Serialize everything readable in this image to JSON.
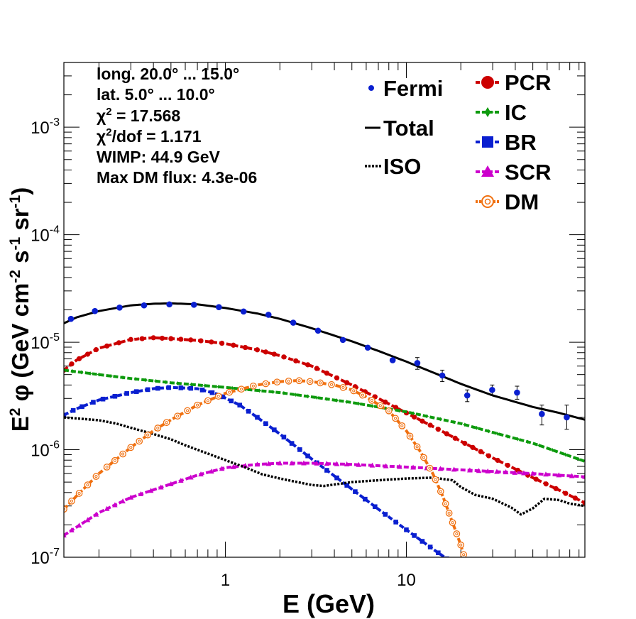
{
  "chart_data": {
    "type": "line",
    "xscale": "log",
    "yscale": "log",
    "xlim": [
      0.128,
      97
    ],
    "ylim": [
      1e-07,
      0.004
    ],
    "xlabel": "E (GeV)",
    "ylabel_parts": [
      "E",
      "2",
      " φ (GeV cm",
      "-2",
      " s",
      "-1",
      " sr",
      "-1",
      ")"
    ],
    "x_tick_labels": [
      {
        "value": 1,
        "text": "1"
      },
      {
        "value": 10,
        "text": "10"
      }
    ],
    "y_tick_labels": [
      {
        "value": 1e-07,
        "base": "10",
        "exp": "-7"
      },
      {
        "value": 1e-06,
        "base": "10",
        "exp": "-6"
      },
      {
        "value": 1e-05,
        "base": "10",
        "exp": "-5"
      },
      {
        "value": 0.0001,
        "base": "10",
        "exp": "-4"
      },
      {
        "value": 0.001,
        "base": "10",
        "exp": "-3"
      }
    ],
    "info": {
      "longitude": "long. 20.0° ... 15.0°",
      "latitude": "lat. 5.0° ... 10.0°",
      "chi2_prefix": "χ",
      "chi2_sup": "2",
      "chi2_suffix": " = 17.568",
      "chi2dof_prefix": "χ",
      "chi2dof_sup": "2",
      "chi2dof_suffix": "/dof = 1.171",
      "wimp": "WIMP: 44.9 GeV",
      "max_dm_flux": "Max DM flux: 4.3e-06"
    },
    "legend": [
      {
        "key": "fermi",
        "label": "Fermi"
      },
      {
        "key": "total",
        "label": "Total"
      },
      {
        "key": "iso",
        "label": "ISO"
      },
      {
        "key": "pcr",
        "label": "PCR"
      },
      {
        "key": "ic",
        "label": "IC"
      },
      {
        "key": "br",
        "label": "BR"
      },
      {
        "key": "scr",
        "label": "SCR"
      },
      {
        "key": "dm",
        "label": "DM"
      }
    ],
    "colors": {
      "fermi": "#0a1fd0",
      "total": "#000000",
      "iso": "#000000",
      "pcr": "#cc0000",
      "ic": "#0d9a0d",
      "br": "#0a1fd0",
      "scr": "#cc00cc",
      "dm": "#f07010"
    },
    "fermi_points": [
      {
        "x": 0.14,
        "y": 1.65e-05,
        "err_lo": 0,
        "err_hi": 0
      },
      {
        "x": 0.19,
        "y": 1.95e-05,
        "err_lo": 0,
        "err_hi": 0
      },
      {
        "x": 0.26,
        "y": 2.1e-05,
        "err_lo": 0,
        "err_hi": 0
      },
      {
        "x": 0.355,
        "y": 2.2e-05,
        "err_lo": 0,
        "err_hi": 0
      },
      {
        "x": 0.49,
        "y": 2.25e-05,
        "err_lo": 0,
        "err_hi": 0
      },
      {
        "x": 0.67,
        "y": 2.23e-05,
        "err_lo": 0,
        "err_hi": 0
      },
      {
        "x": 0.92,
        "y": 2.12e-05,
        "err_lo": 0,
        "err_hi": 0
      },
      {
        "x": 1.26,
        "y": 1.93e-05,
        "err_lo": 0,
        "err_hi": 0
      },
      {
        "x": 1.73,
        "y": 1.8e-05,
        "err_lo": 0,
        "err_hi": 0
      },
      {
        "x": 2.37,
        "y": 1.52e-05,
        "err_lo": 0,
        "err_hi": 0
      },
      {
        "x": 3.25,
        "y": 1.28e-05,
        "err_lo": 0,
        "err_hi": 0
      },
      {
        "x": 4.46,
        "y": 1.05e-05,
        "err_lo": 0,
        "err_hi": 0
      },
      {
        "x": 6.12,
        "y": 8.9e-06,
        "err_lo": 0,
        "err_hi": 0
      },
      {
        "x": 8.4,
        "y": 6.8e-06,
        "err_lo": 0,
        "err_hi": 0
      },
      {
        "x": 11.5,
        "y": 6.4e-06,
        "err_lo": 5.6e-06,
        "err_hi": 7.2e-06
      },
      {
        "x": 15.8,
        "y": 4.9e-06,
        "err_lo": 4.3e-06,
        "err_hi": 5.5e-06
      },
      {
        "x": 21.7,
        "y": 3.2e-06,
        "err_lo": 2.8e-06,
        "err_hi": 3.6e-06
      },
      {
        "x": 29.8,
        "y": 3.6e-06,
        "err_lo": 3.2e-06,
        "err_hi": 4e-06
      },
      {
        "x": 40.9,
        "y": 3.4e-06,
        "err_lo": 2.95e-06,
        "err_hi": 3.9e-06
      },
      {
        "x": 56.1,
        "y": 2.15e-06,
        "err_lo": 1.7e-06,
        "err_hi": 2.6e-06
      },
      {
        "x": 77.0,
        "y": 2e-06,
        "err_lo": 1.55e-06,
        "err_hi": 2.6e-06
      }
    ],
    "series": [
      {
        "key": "total",
        "style": "solid",
        "marker": "none",
        "x": [
          0.128,
          0.15,
          0.2,
          0.3,
          0.4,
          0.5,
          0.7,
          1.0,
          1.5,
          2.0,
          3.0,
          5.0,
          7.0,
          10.0,
          15.0,
          20.0,
          30.0,
          50.0,
          70.0,
          97.0
        ],
        "y": [
          1.5e-05,
          1.7e-05,
          1.95e-05,
          2.2e-05,
          2.28e-05,
          2.3e-05,
          2.25e-05,
          2.08e-05,
          1.85e-05,
          1.65e-05,
          1.35e-05,
          1.02e-05,
          8.3e-06,
          6.6e-06,
          5e-06,
          4.1e-06,
          3.2e-06,
          2.5e-06,
          2.2e-06,
          1.9e-06
        ]
      },
      {
        "key": "pcr",
        "style": "dashed",
        "marker": "circle",
        "x": [
          0.128,
          0.15,
          0.2,
          0.3,
          0.4,
          0.5,
          0.7,
          1.0,
          1.5,
          2.0,
          3.0,
          5.0,
          7.0,
          10.0,
          15.0,
          20.0,
          30.0,
          50.0,
          70.0,
          97.0
        ],
        "y": [
          5.5e-06,
          6.8e-06,
          8.8e-06,
          1.06e-05,
          1.1e-05,
          1.08e-05,
          1.04e-05,
          9.7e-06,
          8.5e-06,
          7.5e-06,
          6e-06,
          4e-06,
          3e-06,
          2.2e-06,
          1.55e-06,
          1.2e-06,
          8.4e-07,
          5.5e-07,
          4.2e-07,
          3.2e-07
        ]
      },
      {
        "key": "ic",
        "style": "dashed",
        "marker": "star",
        "x": [
          0.128,
          0.2,
          0.3,
          0.5,
          1.0,
          2.0,
          3.0,
          5.0,
          10.0,
          20.0,
          30.0,
          50.0,
          97.0
        ],
        "y": [
          5.5e-06,
          5e-06,
          4.6e-06,
          4.2e-06,
          3.8e-06,
          3.4e-06,
          3.1e-06,
          2.75e-06,
          2.25e-06,
          1.75e-06,
          1.45e-06,
          1.15e-06,
          7.8e-07
        ]
      },
      {
        "key": "br",
        "style": "dashed",
        "marker": "square",
        "x": [
          0.128,
          0.15,
          0.2,
          0.3,
          0.4,
          0.5,
          0.7,
          0.9,
          1.2,
          1.5,
          2.0,
          3.0,
          5.0,
          7.0,
          10.0,
          15.0,
          17.0
        ],
        "y": [
          2.1e-06,
          2.4e-06,
          2.9e-06,
          3.4e-06,
          3.7e-06,
          3.8e-06,
          3.7e-06,
          3.3e-06,
          2.6e-06,
          2e-06,
          1.4e-06,
          8.2e-07,
          4.3e-07,
          2.8e-07,
          1.8e-07,
          1.1e-07,
          9.5e-08
        ]
      },
      {
        "key": "scr",
        "style": "dashed",
        "marker": "triangle",
        "x": [
          0.128,
          0.15,
          0.2,
          0.3,
          0.5,
          0.7,
          1.0,
          1.5,
          2.0,
          3.0,
          5.0,
          10.0,
          20.0,
          50.0,
          97.0
        ],
        "y": [
          1.6e-07,
          1.9e-07,
          2.6e-07,
          3.6e-07,
          4.8e-07,
          5.8e-07,
          6.8e-07,
          7.3e-07,
          7.5e-07,
          7.5e-07,
          7.3e-07,
          6.9e-07,
          6.5e-07,
          6e-07,
          5.6e-07
        ]
      },
      {
        "key": "iso",
        "style": "dotted",
        "marker": "none",
        "x": [
          0.128,
          0.2,
          0.25,
          0.3,
          0.4,
          0.5,
          0.6,
          0.8,
          1.0,
          1.3,
          1.6,
          2.0,
          2.5,
          3.0,
          3.5,
          4.2,
          5.0,
          7.0,
          10.0,
          14.0,
          18.0,
          20.0,
          24.0,
          30.0,
          38.0,
          43.0,
          50.0,
          58.0,
          70.0,
          80.0,
          97.0
        ],
        "y": [
          2e-06,
          1.88e-06,
          1.75e-06,
          1.6e-06,
          1.4e-06,
          1.25e-06,
          1.1e-06,
          9.2e-07,
          8e-07,
          6.8e-07,
          5.9e-07,
          5.4e-07,
          5e-07,
          4.7e-07,
          4.6e-07,
          4.8e-07,
          5e-07,
          5.2e-07,
          5.4e-07,
          5.5e-07,
          5.2e-07,
          4.5e-07,
          3.8e-07,
          3.5e-07,
          2.9e-07,
          2.5e-07,
          2.85e-07,
          3.5e-07,
          3.4e-07,
          3.15e-07,
          3e-07
        ]
      },
      {
        "key": "dm",
        "style": "dashed",
        "marker": "opencircle",
        "x": [
          0.128,
          0.15,
          0.2,
          0.3,
          0.4,
          0.5,
          0.7,
          1.0,
          1.5,
          2.0,
          2.5,
          3.0,
          4.0,
          5.0,
          6.0,
          8.0,
          10.0,
          12.0,
          14.0,
          16.0,
          18.0,
          20.0,
          22.0
        ],
        "y": [
          2.8e-07,
          3.7e-07,
          6e-07,
          1.05e-06,
          1.5e-06,
          1.9e-06,
          2.6e-06,
          3.35e-06,
          4e-06,
          4.3e-06,
          4.4e-06,
          4.3e-06,
          4e-06,
          3.6e-06,
          3.1e-06,
          2.3e-06,
          1.5e-06,
          9.5e-07,
          6e-07,
          3.6e-07,
          2.1e-07,
          1.3e-07,
          7.5e-08
        ]
      }
    ]
  }
}
